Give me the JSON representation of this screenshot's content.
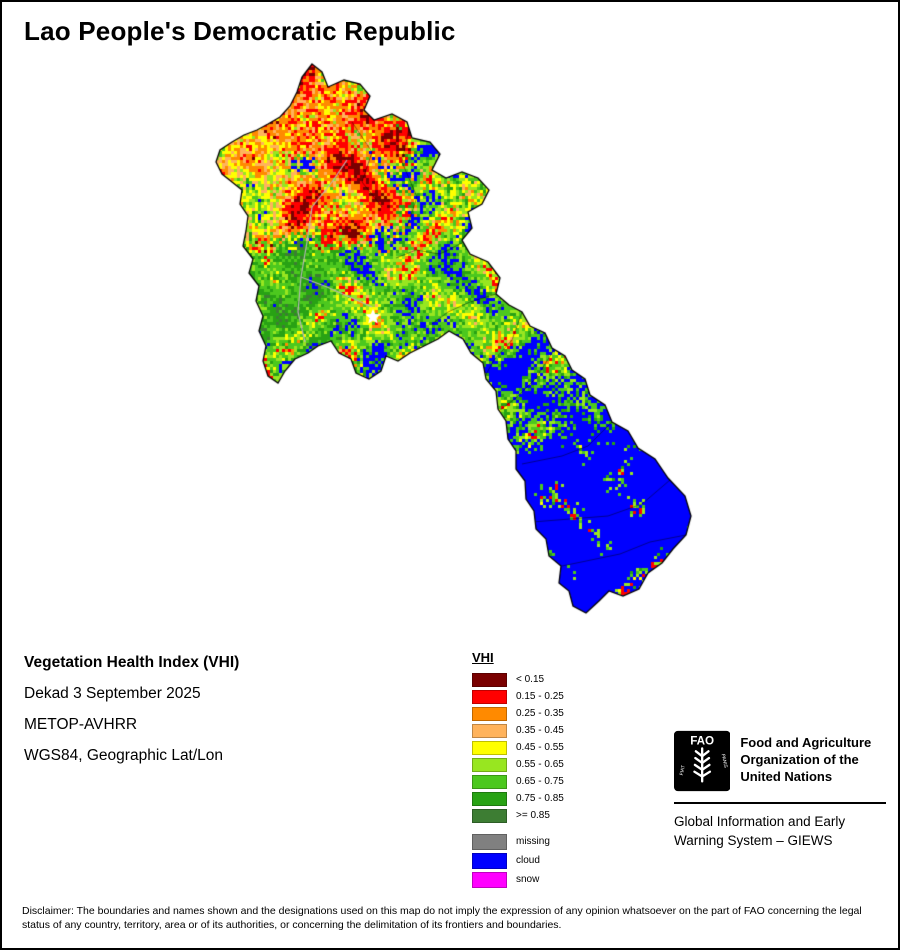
{
  "title": "Lao People's Democratic Republic",
  "info": {
    "heading": "Vegetation Health Index (VHI)",
    "dekad": "Dekad 3 September 2025",
    "sensor": "METOP-AVHRR",
    "projection": "WGS84, Geographic Lat/Lon"
  },
  "legend": {
    "title": "VHI",
    "classes": [
      {
        "label": "< 0.15",
        "color": "#7a0000"
      },
      {
        "label": "0.15 - 0.25",
        "color": "#ff0000"
      },
      {
        "label": "0.25 - 0.35",
        "color": "#ff8a00"
      },
      {
        "label": "0.35 - 0.45",
        "color": "#ffb35c"
      },
      {
        "label": "0.45 - 0.55",
        "color": "#ffff00"
      },
      {
        "label": "0.55 - 0.65",
        "color": "#98e620"
      },
      {
        "label": "0.65 - 0.75",
        "color": "#4cc81e"
      },
      {
        "label": "0.75 - 0.85",
        "color": "#28a214"
      },
      {
        "label": ">= 0.85",
        "color": "#3d7d33"
      }
    ],
    "extra": [
      {
        "label": "missing",
        "color": "#808080"
      },
      {
        "label": "cloud",
        "color": "#0000ff"
      },
      {
        "label": "snow",
        "color": "#ff00ff"
      }
    ]
  },
  "fao": {
    "logo_text": "FAO",
    "motto_left": "FIAT",
    "motto_right": "PANIS",
    "org_name": "Food and Agriculture Organization of the United Nations",
    "giews": "Global Information and Early Warning System – GIEWS"
  },
  "disclaimer": "Disclaimer: The boundaries and names shown and the designations used on this map do not imply the expression of any opinion whatsoever on the part of FAO concerning the legal status of any country, territory, area or of its authorities, or concerning the delimitation of its frontiers and boundaries."
}
